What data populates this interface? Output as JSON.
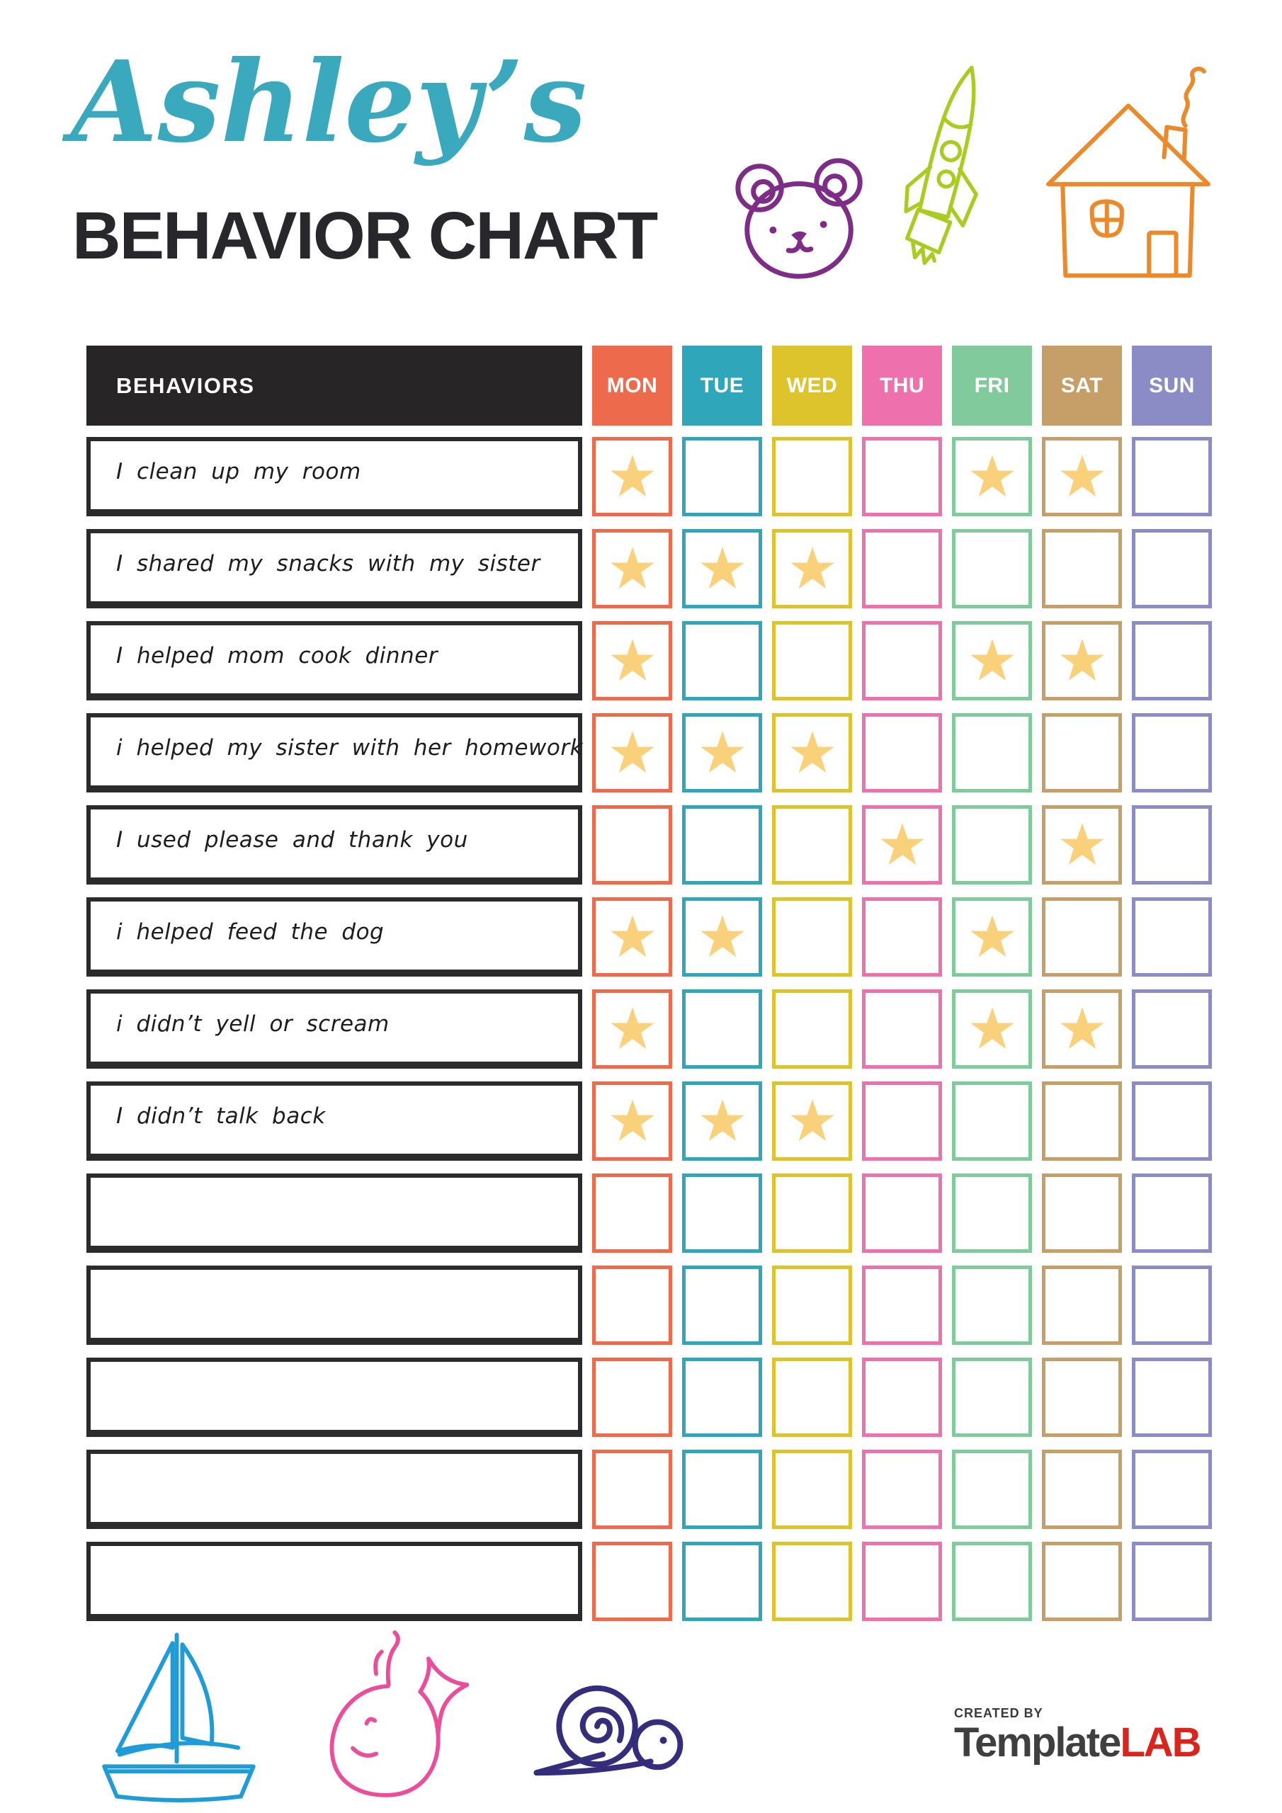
{
  "header": {
    "title_script": "Ashley’s",
    "title_main": "BEHAVIOR CHART",
    "script_color": "#3AA9BD"
  },
  "table": {
    "behaviors_header": "BEHAVIORS",
    "behaviors_header_bg": "#272525",
    "star_color": "#F8D17A",
    "days": [
      {
        "label": "MON",
        "color": "#ED6A4C"
      },
      {
        "label": "TUE",
        "color": "#2FA6BA"
      },
      {
        "label": "WED",
        "color": "#DDC32C"
      },
      {
        "label": "THU",
        "color": "#EE71AD"
      },
      {
        "label": "FRI",
        "color": "#80CA9B"
      },
      {
        "label": "SAT",
        "color": "#C59F67"
      },
      {
        "label": "SUN",
        "color": "#8B8BC6"
      }
    ],
    "rows": [
      {
        "label": "I clean up my room",
        "stars": [
          "MON",
          "FRI",
          "SAT"
        ]
      },
      {
        "label": "I shared my snacks with my sister",
        "stars": [
          "MON",
          "TUE",
          "WED"
        ]
      },
      {
        "label": "I helped mom cook dinner",
        "stars": [
          "MON",
          "FRI",
          "SAT"
        ]
      },
      {
        "label": "i helped my sister with her homework",
        "stars": [
          "MON",
          "TUE",
          "WED"
        ]
      },
      {
        "label": "I used please and thank you",
        "stars": [
          "THU",
          "SAT"
        ]
      },
      {
        "label": "i helped feed the dog",
        "stars": [
          "MON",
          "TUE",
          "FRI"
        ]
      },
      {
        "label": "i didn’t yell or scream",
        "stars": [
          "MON",
          "FRI",
          "SAT"
        ]
      },
      {
        "label": "I didn’t talk back",
        "stars": [
          "MON",
          "TUE",
          "WED"
        ]
      },
      {
        "label": "",
        "stars": []
      },
      {
        "label": "",
        "stars": []
      },
      {
        "label": "",
        "stars": []
      },
      {
        "label": "",
        "stars": []
      },
      {
        "label": "",
        "stars": []
      }
    ]
  },
  "decorations": {
    "bear": "#7E2D86",
    "rocket": "#A9CC21",
    "house": "#EC8A2B",
    "sailboat": "#1F9CD8",
    "whale": "#EC4D9B",
    "snail": "#332D7B"
  },
  "footer": {
    "created_by": "CREATED BY",
    "brand_name": "Template",
    "brand_suffix": "LAB",
    "brand_color": "#3F3F3F",
    "suffix_color": "#DA251C"
  }
}
